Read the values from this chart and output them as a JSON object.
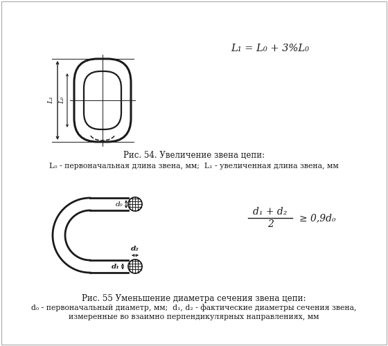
{
  "bg_color": "#ffffff",
  "line_color": "#1a1a1a",
  "text_color": "#1a1a1a",
  "fig54_caption": "Рис. 54. Увеличение звена цепи:",
  "fig54_sub": "L₀ - первоначальная длина звена, мм;  L₁ - увеличенная длина звена, мм",
  "fig55_caption": "Рис. 55 Уменьшение диаметра сечения звена цепи:",
  "fig55_sub1": "d₀ - первоначальный диаметр, мм;  d₁, d₂ - фактические диаметры сечения звена,",
  "fig55_sub2": "измеренные во взаимно перпендикулярных направлениях, мм",
  "formula1": "L₁ = L₀ + 3%L₀",
  "formula2_num": "d₁ + d₂",
  "formula2_den": "2",
  "formula2_rhs": "≥ 0,9d₀"
}
